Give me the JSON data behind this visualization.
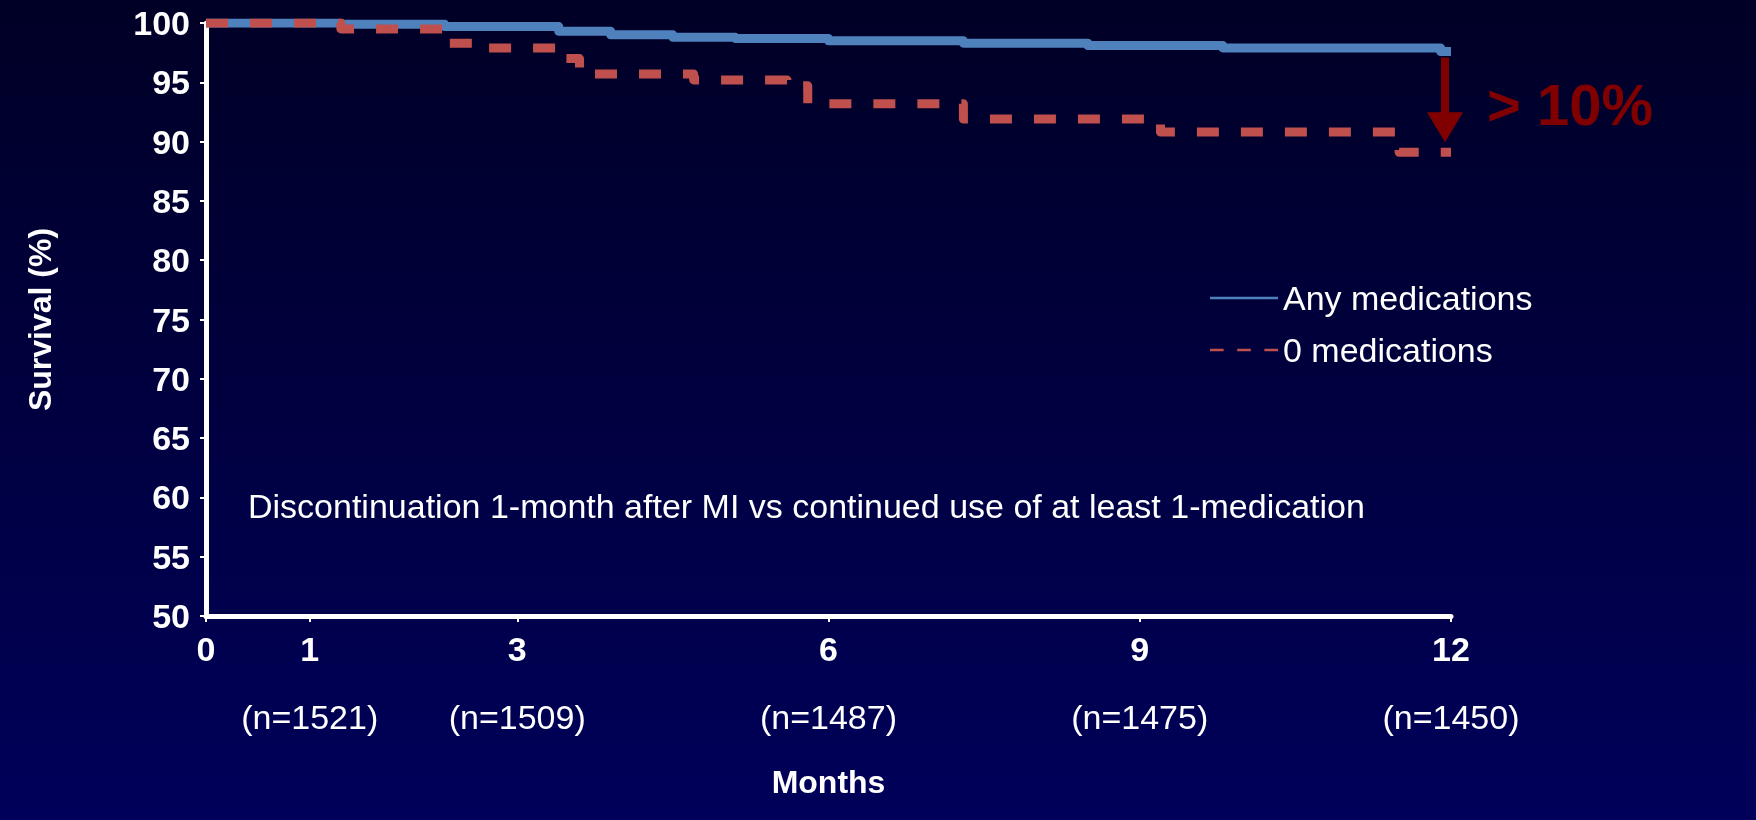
{
  "chart_data": {
    "type": "step",
    "xlabel": "Months",
    "ylabel": "Survival (%)",
    "xlim": [
      0,
      12
    ],
    "xticks": [
      0,
      1,
      3,
      6,
      9,
      12
    ],
    "ylim": [
      50,
      100
    ],
    "yticks": [
      50,
      55,
      60,
      65,
      70,
      75,
      80,
      85,
      90,
      95,
      100
    ],
    "series": [
      {
        "name": "Any medications",
        "color": "#4f81bd",
        "line_style": "solid",
        "x": [
          0,
          1.3,
          2.3,
          3.4,
          3.9,
          4.5,
          5.1,
          6.0,
          7.3,
          8.5,
          9.8,
          11.9,
          12
        ],
        "values": [
          100,
          99.9,
          99.7,
          99.3,
          99.0,
          98.8,
          98.7,
          98.5,
          98.3,
          98.1,
          97.9,
          97.6,
          97.6
        ]
      },
      {
        "name": "0 medications",
        "color": "#c0504d",
        "line_style": "dashed",
        "x": [
          0,
          1.3,
          2.3,
          2.7,
          3.4,
          3.6,
          4.7,
          5.6,
          5.8,
          7.3,
          9.2,
          11.5,
          12
        ],
        "values": [
          100,
          99.5,
          98.3,
          97.9,
          97.0,
          95.7,
          95.2,
          94.7,
          93.2,
          91.9,
          90.8,
          89.1,
          89.1
        ]
      }
    ],
    "marker": "none",
    "grid": false,
    "legend": "right",
    "annotations": [
      "(n=1521)",
      "(n=1509)",
      "(n=1487)",
      "(n=1475)",
      "(n=1450)",
      "Discontinuation 1-month after MI vs continued use of at least 1-medication",
      "> 10%"
    ]
  }
}
